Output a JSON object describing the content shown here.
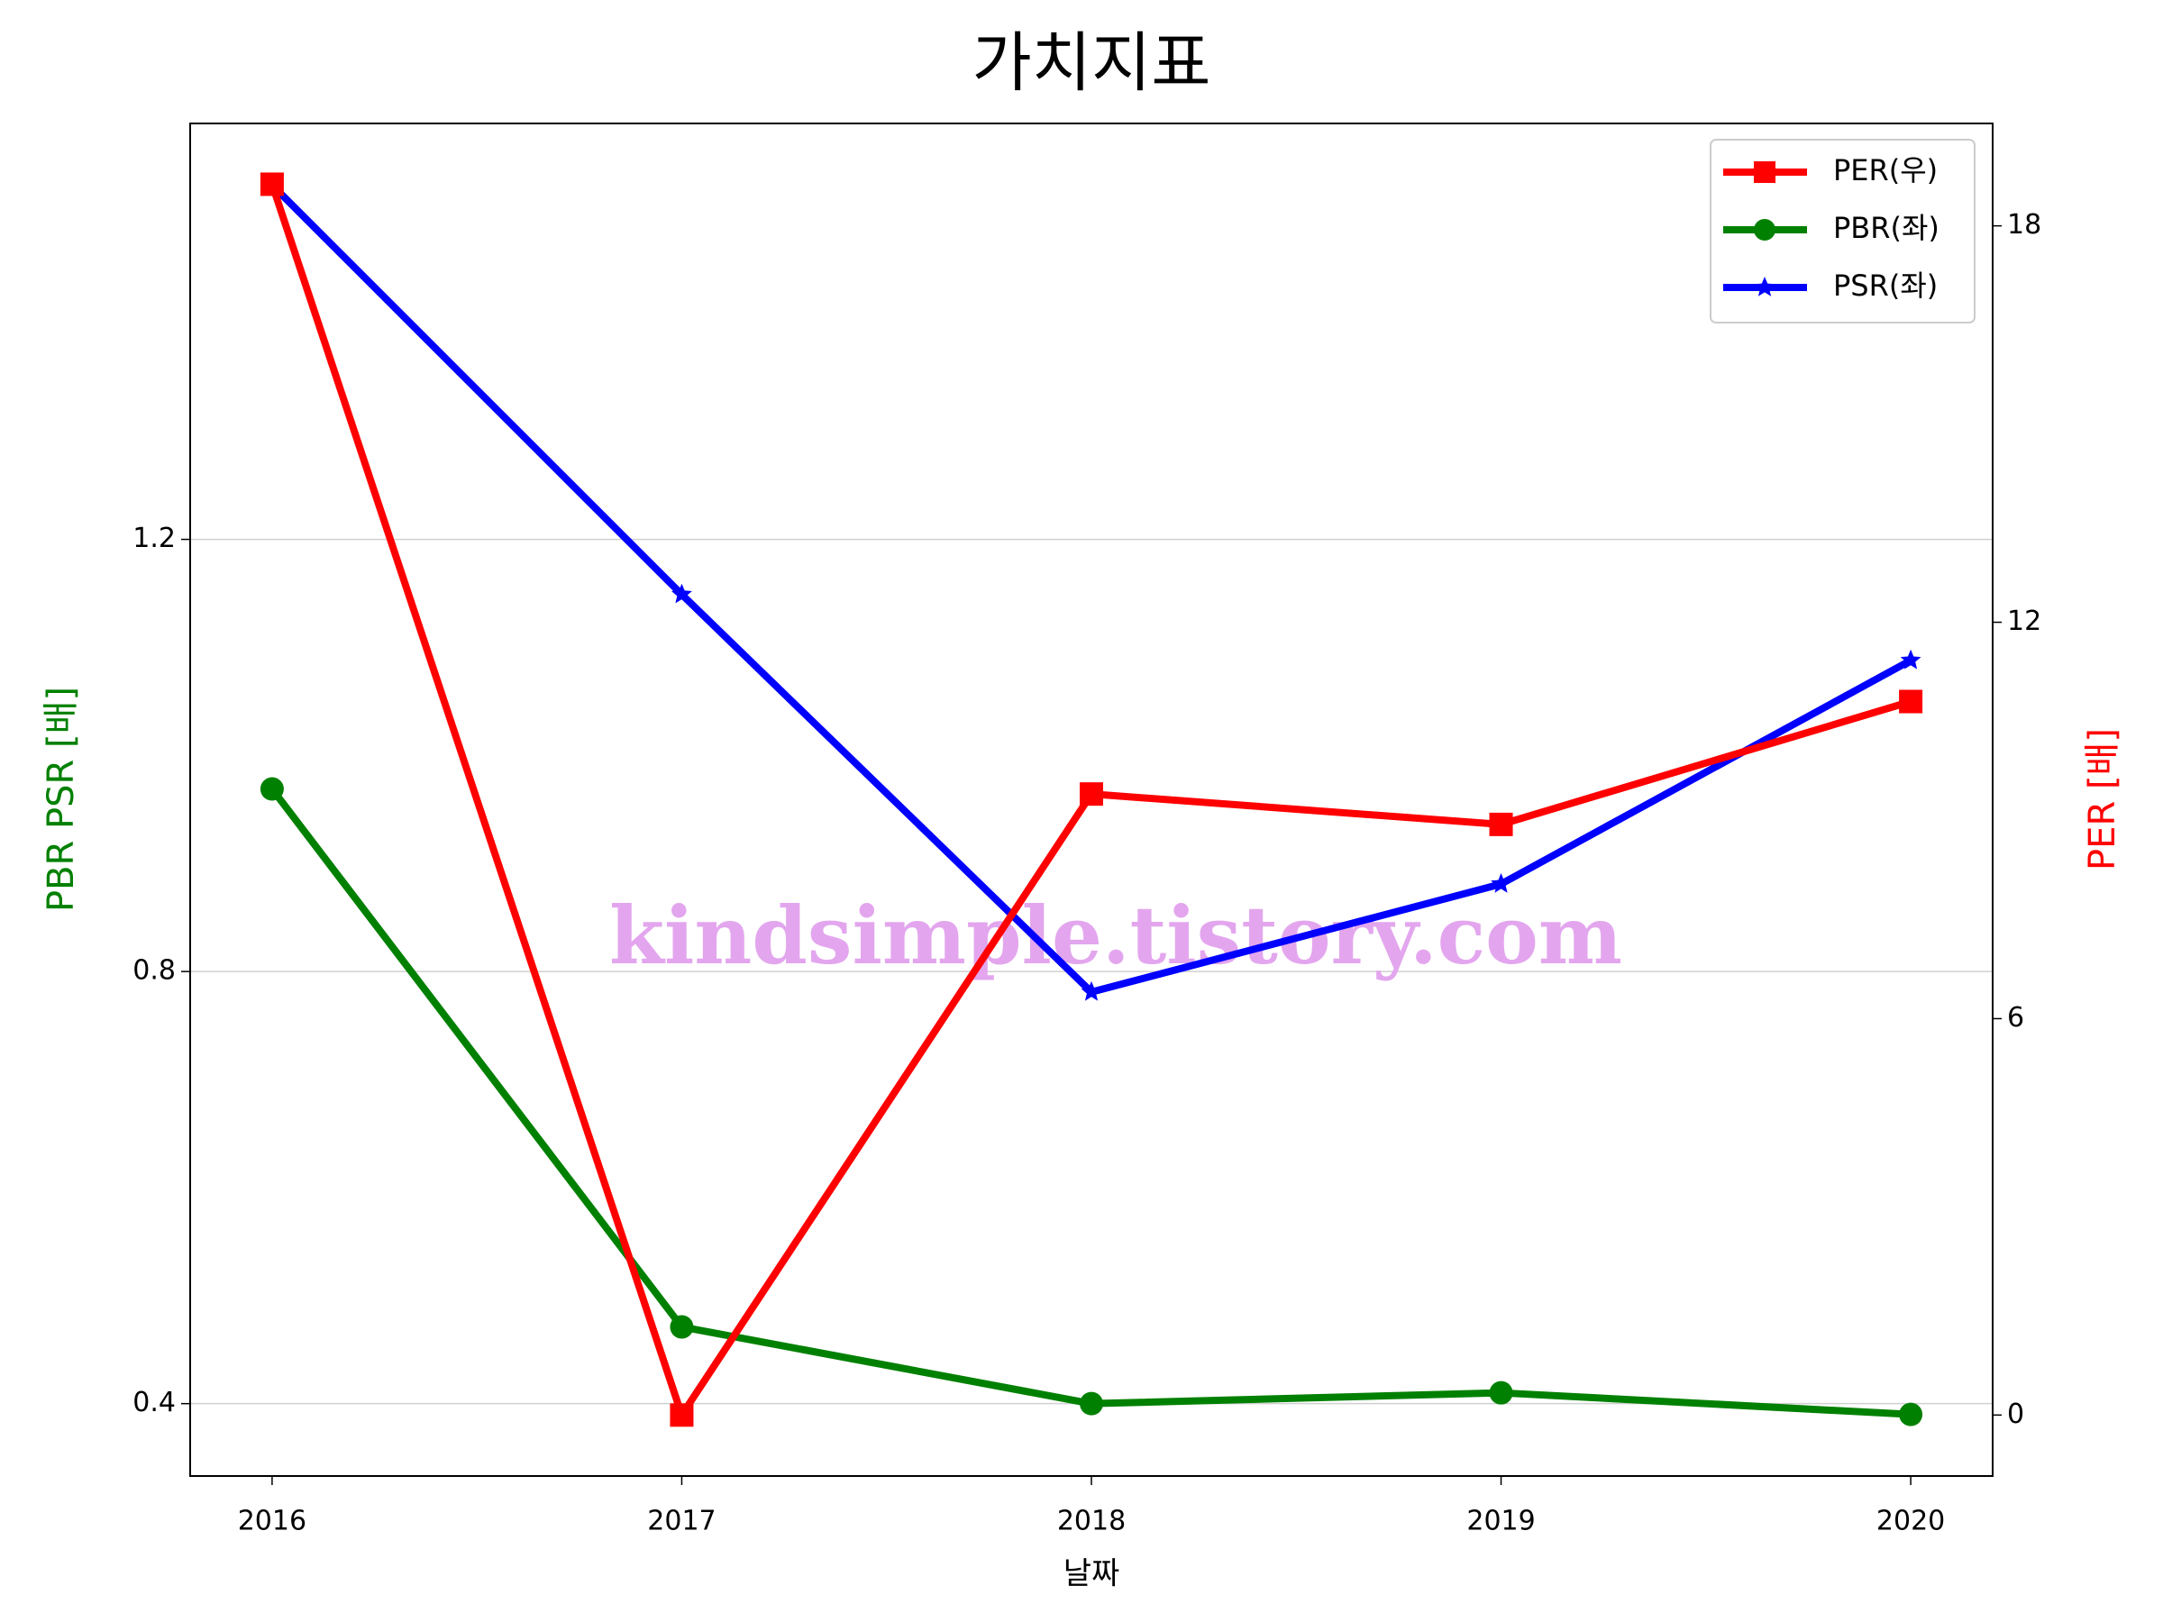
{
  "chart_data": {
    "type": "line",
    "title": "가치지표",
    "xlabel": "날짜",
    "ylabel": "PBR PSR [배]",
    "y2label": "PER [배]",
    "ylabel_color": "green",
    "y2label_color": "red",
    "x": [
      2016,
      2017,
      2018,
      2019,
      2020
    ],
    "xlim": [
      2015.8,
      2020.2
    ],
    "xticks": [
      2016,
      2017,
      2018,
      2019,
      2020
    ],
    "ylim": [
      0.333,
      1.585
    ],
    "yticks": [
      0.4,
      0.8,
      1.2
    ],
    "y2lim": [
      -0.923,
      19.55
    ],
    "y2ticks": [
      0,
      6,
      12,
      18
    ],
    "grid": true,
    "legend": "upper right",
    "watermark": "kindsimple.tistory.com",
    "series": [
      {
        "name": "PER(우)",
        "color": "#ff0000",
        "marker": "square",
        "axis": "y2",
        "values": [
          18.63,
          0,
          9.4,
          8.94,
          10.8
        ]
      },
      {
        "name": "PBR(좌)",
        "color": "#008000",
        "marker": "circle",
        "values": [
          0.969,
          0.471,
          0.4,
          0.41,
          0.39
        ]
      },
      {
        "name": "PSR(좌)",
        "color": "#0000ff",
        "marker": "star",
        "values": [
          1.528,
          1.149,
          0.781,
          0.881,
          1.088
        ]
      }
    ]
  }
}
